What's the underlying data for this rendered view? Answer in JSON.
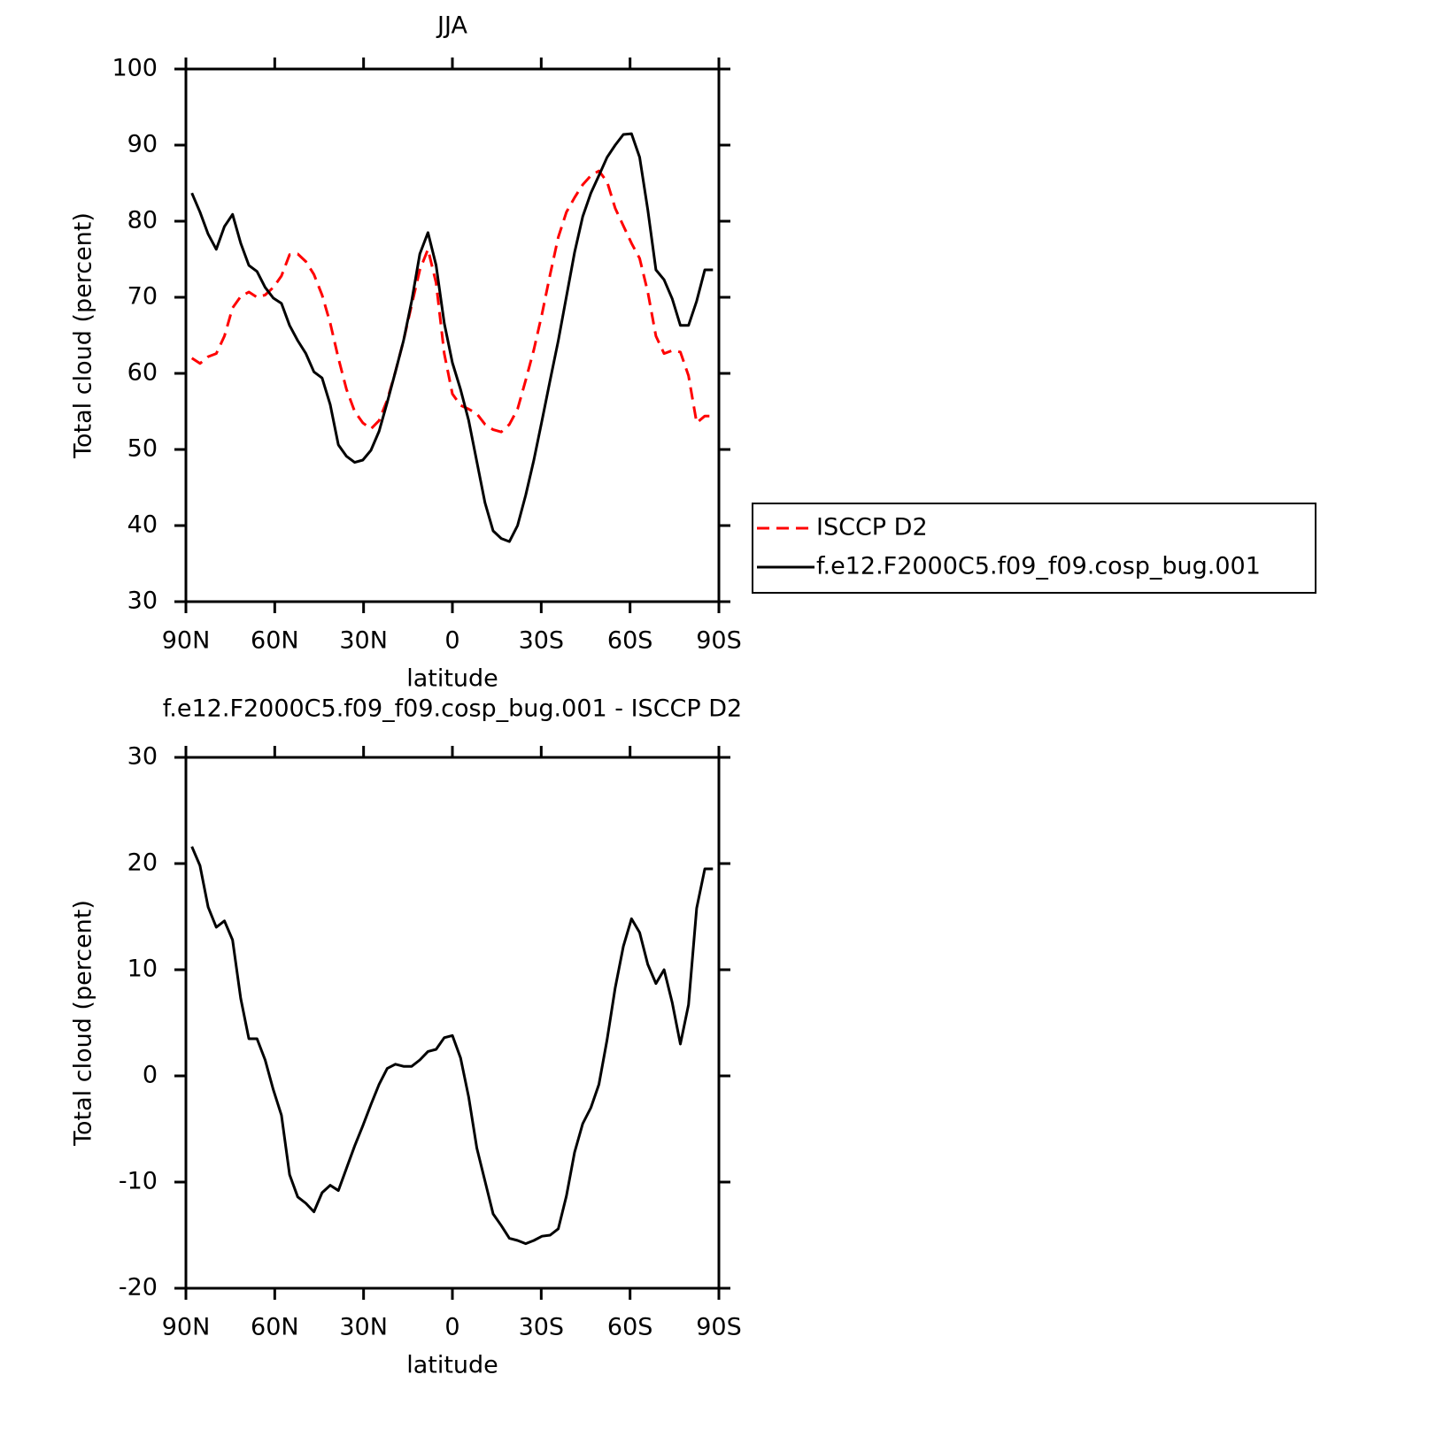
{
  "chart_data": [
    {
      "type": "line",
      "title": "JJA",
      "x_label": "latitude",
      "y_label": "Total cloud (percent)",
      "x": [
        88,
        85.25,
        82.5,
        79.75,
        77,
        74.25,
        71.5,
        68.75,
        66,
        63.25,
        60.5,
        57.75,
        55,
        52.25,
        49.5,
        46.75,
        44,
        41.25,
        38.5,
        35.75,
        33,
        30.25,
        27.5,
        24.75,
        22,
        19.25,
        16.5,
        13.75,
        11,
        8.25,
        5.5,
        2.75,
        0,
        -2.75,
        -5.5,
        -8.25,
        -11,
        -13.75,
        -16.5,
        -19.25,
        -22,
        -24.75,
        -27.5,
        -30.25,
        -33,
        -35.75,
        -38.5,
        -41.25,
        -44,
        -46.75,
        -49.5,
        -52.25,
        -55,
        -57.75,
        -60.5,
        -63.25,
        -66,
        -68.75,
        -71.5,
        -74.25,
        -77,
        -79.75,
        -82.5,
        -85.25,
        -88
      ],
      "xlim": [
        90,
        -90
      ],
      "xticks": [
        {
          "value": 90,
          "label": "90N"
        },
        {
          "value": 60,
          "label": "60N"
        },
        {
          "value": 30,
          "label": "30N"
        },
        0,
        {
          "value": -30,
          "label": "30S"
        },
        {
          "value": -60,
          "label": "60S"
        },
        {
          "value": -90,
          "label": "90S"
        }
      ],
      "ylim": [
        30,
        100
      ],
      "yticks": [
        30,
        40,
        50,
        60,
        70,
        80,
        90,
        100
      ],
      "legend": "right",
      "series": [
        {
          "name": "ISCCP D2",
          "color": "#ff0000",
          "dash": true,
          "values": [
            62.0,
            61.3,
            62.2,
            62.6,
            64.9,
            68.6,
            70.1,
            70.7,
            70.0,
            70.3,
            71.3,
            72.8,
            75.6,
            75.7,
            74.7,
            73.0,
            70.3,
            66.6,
            62.0,
            57.9,
            55.0,
            53.5,
            52.7,
            53.8,
            56.5,
            60.2,
            64.3,
            69.0,
            73.6,
            76.3,
            71.9,
            62.6,
            57.3,
            55.8,
            55.3,
            54.7,
            53.3,
            52.6,
            52.3,
            53.3,
            55.3,
            59.1,
            63.1,
            67.8,
            73.0,
            77.9,
            81.2,
            83.1,
            84.8,
            86.0,
            86.6,
            85.2,
            81.7,
            79.4,
            77.1,
            75.1,
            70.7,
            64.9,
            62.6,
            63.0,
            62.8,
            59.7,
            53.5,
            54.4,
            54.4
          ]
        },
        {
          "name": "f.e12.F2000C5.f09_f09.cosp_bug.001",
          "color": "#000000",
          "dash": false,
          "values": [
            83.7,
            81.2,
            78.3,
            76.3,
            79.3,
            80.9,
            77.1,
            74.2,
            73.4,
            71.3,
            69.9,
            69.2,
            66.3,
            64.3,
            62.6,
            60.2,
            59.4,
            55.9,
            50.6,
            49.1,
            48.3,
            48.6,
            49.9,
            52.4,
            56.2,
            60.2,
            64.3,
            69.5,
            75.7,
            78.5,
            74.2,
            66.6,
            61.4,
            57.9,
            53.8,
            48.4,
            43.0,
            39.3,
            38.3,
            37.9,
            40.0,
            44.0,
            48.6,
            53.8,
            59.1,
            64.3,
            70.1,
            75.9,
            80.6,
            83.7,
            86.0,
            88.4,
            90.0,
            91.4,
            91.5,
            88.4,
            81.5,
            73.6,
            72.3,
            69.8,
            66.3,
            66.3,
            69.5,
            73.6,
            73.6
          ]
        }
      ]
    },
    {
      "type": "line",
      "title": "f.e12.F2000C5.f09_f09.cosp_bug.001 - ISCCP D2",
      "x_label": "latitude",
      "y_label": "Total cloud (percent)",
      "x": [
        88,
        85.25,
        82.5,
        79.75,
        77,
        74.25,
        71.5,
        68.75,
        66,
        63.25,
        60.5,
        57.75,
        55,
        52.25,
        49.5,
        46.75,
        44,
        41.25,
        38.5,
        35.75,
        33,
        30.25,
        27.5,
        24.75,
        22,
        19.25,
        16.5,
        13.75,
        11,
        8.25,
        5.5,
        2.75,
        0,
        -2.75,
        -5.5,
        -8.25,
        -11,
        -13.75,
        -16.5,
        -19.25,
        -22,
        -24.75,
        -27.5,
        -30.25,
        -33,
        -35.75,
        -38.5,
        -41.25,
        -44,
        -46.75,
        -49.5,
        -52.25,
        -55,
        -57.75,
        -60.5,
        -63.25,
        -66,
        -68.75,
        -71.5,
        -74.25,
        -77,
        -79.75,
        -82.5,
        -85.25,
        -88
      ],
      "xlim": [
        90,
        -90
      ],
      "xticks": [
        {
          "value": 90,
          "label": "90N"
        },
        {
          "value": 60,
          "label": "60N"
        },
        {
          "value": 30,
          "label": "30N"
        },
        0,
        {
          "value": -30,
          "label": "30S"
        },
        {
          "value": -60,
          "label": "60S"
        },
        {
          "value": -90,
          "label": "90S"
        }
      ],
      "ylim": [
        -20,
        30
      ],
      "yticks": [
        -20,
        -10,
        0,
        10,
        20,
        30
      ],
      "series": [
        {
          "color": "#000000",
          "dash": false,
          "values": [
            21.6,
            19.8,
            15.9,
            14.0,
            14.6,
            12.8,
            7.3,
            3.5,
            3.5,
            1.5,
            -1.3,
            -3.7,
            -9.3,
            -11.4,
            -12.0,
            -12.8,
            -11.0,
            -10.3,
            -10.8,
            -8.7,
            -6.6,
            -4.7,
            -2.7,
            -0.8,
            0.7,
            1.1,
            0.9,
            0.9,
            1.5,
            2.3,
            2.5,
            3.6,
            3.8,
            1.7,
            -2.0,
            -6.8,
            -9.9,
            -13.0,
            -14.1,
            -15.3,
            -15.5,
            -15.8,
            -15.5,
            -15.1,
            -15.0,
            -14.4,
            -11.3,
            -7.2,
            -4.5,
            -3.0,
            -0.8,
            3.4,
            8.3,
            12.2,
            14.8,
            13.5,
            10.5,
            8.7,
            10.0,
            6.9,
            3.0,
            6.7,
            15.8,
            19.5,
            19.5
          ]
        }
      ]
    }
  ]
}
